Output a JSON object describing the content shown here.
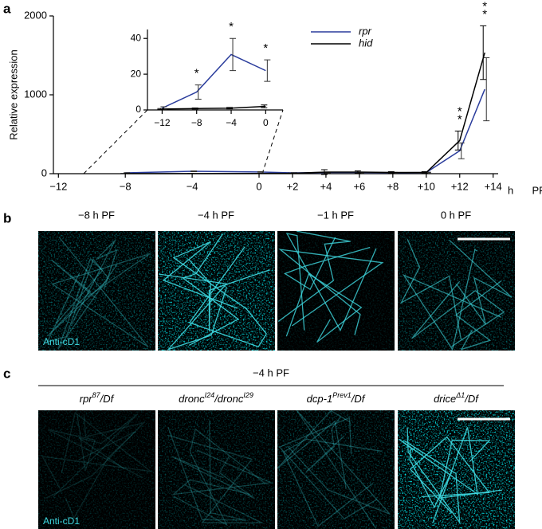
{
  "panel_labels": [
    "a",
    "b",
    "c"
  ],
  "chart_data": [
    {
      "type": "line",
      "ylabel": "Relative expression",
      "xlabel": "h  PF",
      "legend": "upper-right",
      "xlim": [
        -12.3,
        14.3
      ],
      "ylim": [
        0,
        2000
      ],
      "xticks": [
        {
          "value": -12,
          "label": "−12"
        },
        {
          "value": -8,
          "label": "−8"
        },
        {
          "value": -4,
          "label": "−4"
        },
        0,
        {
          "value": 2,
          "label": "+2"
        },
        {
          "value": 4,
          "label": "+4"
        },
        {
          "value": 6,
          "label": "+6"
        },
        {
          "value": 8,
          "label": "+8"
        },
        {
          "value": 10,
          "label": "+10"
        },
        {
          "value": 12,
          "label": "+12"
        },
        {
          "value": 14,
          "label": "+14"
        }
      ],
      "yticks": [
        0,
        1000,
        2000
      ],
      "x": [
        -8,
        -4,
        0,
        2,
        4,
        6,
        8,
        10,
        12,
        13.5
      ],
      "series": [
        {
          "name": "rpr",
          "color": "#2a3c9c",
          "values": [
            10,
            30,
            22,
            10,
            15,
            15,
            12,
            15,
            290,
            1070
          ],
          "errors": [
            3,
            5,
            4,
            3,
            5,
            5,
            4,
            4,
            100,
            400
          ]
        },
        {
          "name": "hid",
          "color": "#000000",
          "values": [
            1,
            1,
            2,
            5,
            20,
            20,
            15,
            15,
            420,
            1535
          ],
          "errors": [
            1,
            1,
            1,
            2,
            30,
            15,
            10,
            10,
            120,
            340
          ]
        }
      ],
      "annotations": [
        {
          "x": 12,
          "text": "*"
        },
        {
          "x": 12,
          "text": "*"
        },
        {
          "x": 13.5,
          "text": "*"
        },
        {
          "x": 13.5,
          "text": "*"
        }
      ]
    },
    {
      "type": "line",
      "xlim": [
        -13.7,
        2
      ],
      "ylim": [
        0,
        45
      ],
      "xticks": [
        {
          "value": -12,
          "label": "−12"
        },
        {
          "value": -8,
          "label": "−8"
        },
        {
          "value": -4,
          "label": "−4"
        },
        0
      ],
      "yticks": [
        0,
        20,
        40
      ],
      "x": [
        -12,
        -8,
        -4,
        0
      ],
      "series": [
        {
          "name": "rpr",
          "color": "#2a3c9c",
          "values": [
            1,
            10,
            31,
            22
          ],
          "errors": [
            0.8,
            4,
            9,
            6
          ]
        },
        {
          "name": "hid",
          "color": "#000000",
          "values": [
            0.5,
            0.8,
            1,
            2
          ],
          "errors": [
            0.3,
            0.3,
            0.4,
            0.8
          ]
        }
      ],
      "annotations": [
        {
          "x": -8,
          "text": "*"
        },
        {
          "x": -4,
          "text": "*"
        },
        {
          "x": 0,
          "text": "*"
        }
      ]
    }
  ],
  "panel_b": {
    "titles": [
      "−8 h PF",
      "−4 h PF",
      "−1 h PF",
      "0 h PF"
    ],
    "stain_label": "Anti-cD1"
  },
  "panel_c": {
    "heading": "−4 h PF",
    "stain_label": "Anti-cD1",
    "genotypes": [
      {
        "segments": [
          {
            "text": "rpr"
          },
          {
            "text": "87",
            "sup": true
          },
          {
            "text": "/Df"
          }
        ]
      },
      {
        "segments": [
          {
            "text": "dronc"
          },
          {
            "text": "I24",
            "sup": true
          },
          {
            "text": "/dronc"
          },
          {
            "text": "I29",
            "sup": true
          }
        ]
      },
      {
        "segments": [
          {
            "text": "dcp-1"
          },
          {
            "text": "Prev1",
            "sup": true
          },
          {
            "text": "/Df"
          }
        ]
      },
      {
        "segments": [
          {
            "text": "drice"
          },
          {
            "text": "Δ1",
            "sup": true
          },
          {
            "text": "/Df"
          }
        ]
      }
    ]
  }
}
